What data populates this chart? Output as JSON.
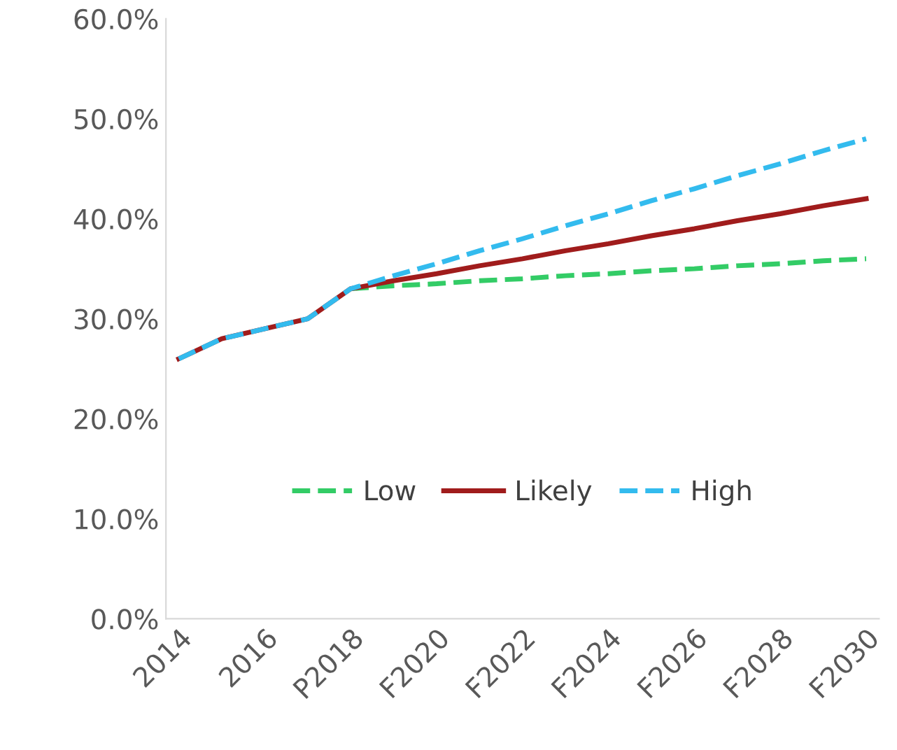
{
  "chart_data": {
    "type": "line",
    "categories": [
      "2014",
      null,
      "2016",
      null,
      "P2018",
      null,
      "F2020",
      null,
      "F2022",
      null,
      "F2024",
      null,
      "F2026",
      null,
      "F2028",
      null,
      "F2030"
    ],
    "series": [
      {
        "name": "Low",
        "color": "#33cc66",
        "line_style": "dashed",
        "values": [
          null,
          null,
          null,
          null,
          33,
          33.3,
          33.5,
          33.8,
          34,
          34.3,
          34.5,
          34.8,
          35,
          35.3,
          35.5,
          35.8,
          36
        ]
      },
      {
        "name": "Likely",
        "color": "#a01c1c",
        "line_style": "solid",
        "values": [
          26,
          28,
          29,
          30,
          33,
          33.8,
          34.5,
          35.3,
          36,
          36.8,
          37.5,
          38.3,
          39,
          39.8,
          40.5,
          41.3,
          42
        ]
      },
      {
        "name": "High",
        "color": "#33bbee",
        "line_style": "dashed",
        "values": [
          26,
          28,
          29,
          30,
          33,
          34.3,
          35.5,
          36.8,
          38,
          39.3,
          40.5,
          41.8,
          43,
          44.3,
          45.5,
          46.8,
          48
        ]
      }
    ],
    "ylim": [
      0,
      60
    ],
    "yticks": [
      {
        "value": 0,
        "label": "0.0%"
      },
      {
        "value": 10,
        "label": "10.0%"
      },
      {
        "value": 20,
        "label": "20.0%"
      },
      {
        "value": 30,
        "label": "30.0%"
      },
      {
        "value": 40,
        "label": "40.0%"
      },
      {
        "value": 50,
        "label": "50.0%"
      },
      {
        "value": 60,
        "label": "60.0%"
      }
    ],
    "grid": false,
    "legend": "bottom",
    "marker": "none"
  }
}
